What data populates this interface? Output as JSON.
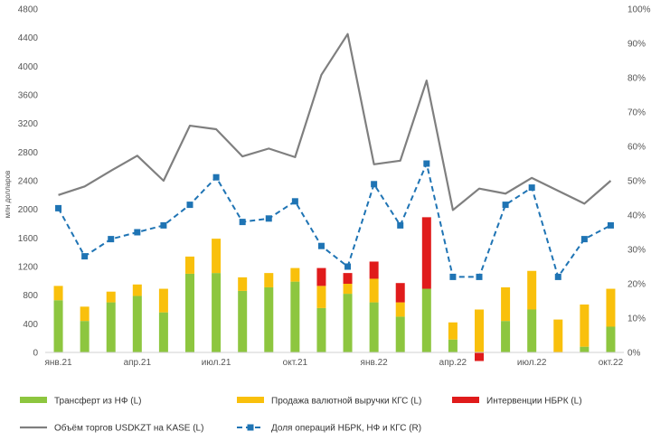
{
  "chart_data": {
    "type": "bar",
    "ylabel": "млн долларов",
    "ylim_left": [
      0,
      4800
    ],
    "ylim_right": [
      0,
      100
    ],
    "yticks_left": [
      "0",
      "400",
      "800",
      "1200",
      "1600",
      "2000",
      "2400",
      "2800",
      "3200",
      "3600",
      "4000",
      "4400",
      "4800"
    ],
    "yticks_right": [
      "0%",
      "10%",
      "20%",
      "30%",
      "40%",
      "50%",
      "60%",
      "70%",
      "80%",
      "90%",
      "100%"
    ],
    "x_tick_labels": [
      "янв.21",
      "апр.21",
      "июл.21",
      "окт.21",
      "янв.22",
      "апр.22",
      "июл.22",
      "окт.22"
    ],
    "grid": false,
    "legend_position": "bottom",
    "colors": {
      "transfer": "#8dc63f",
      "sales": "#f9c00c",
      "interventions": "#e01b1b",
      "volume": "#7f7f7f",
      "share": "#1f74b4"
    },
    "series": [
      {
        "name": "Трансферт из НФ (L)",
        "type": "bar",
        "values": [
          730,
          440,
          700,
          790,
          560,
          1100,
          1110,
          860,
          910,
          990,
          620,
          820,
          700,
          500,
          890,
          180,
          0,
          440,
          600,
          0,
          80,
          360
        ]
      },
      {
        "name": "Продажа валютной выручки КГС (L)",
        "type": "bar",
        "values": [
          200,
          200,
          150,
          160,
          330,
          240,
          480,
          190,
          200,
          190,
          310,
          140,
          330,
          200,
          0,
          240,
          600,
          470,
          540,
          460,
          590,
          530
        ]
      },
      {
        "name": "Интервенции НБРК (L)",
        "type": "bar",
        "values": [
          0,
          0,
          0,
          0,
          0,
          0,
          0,
          0,
          0,
          0,
          250,
          150,
          240,
          270,
          1000,
          0,
          -120,
          0,
          0,
          0,
          0,
          0
        ]
      },
      {
        "name": "Объём торгов USDKZT на KASE (L)",
        "type": "line",
        "values": [
          2200,
          2320,
          2540,
          2750,
          2400,
          3170,
          3120,
          2740,
          2850,
          2730,
          3880,
          4450,
          2630,
          2680,
          3800,
          1990,
          2290,
          2220,
          2440,
          2260,
          2080,
          2400
        ]
      },
      {
        "name": "Доля операций НБРК, НФ и КГС (R)",
        "type": "line",
        "values": [
          42,
          28,
          33,
          35,
          37,
          43,
          51,
          38,
          39,
          44,
          31,
          25,
          49,
          37,
          55,
          22,
          22,
          43,
          48,
          22,
          33,
          37
        ]
      }
    ]
  }
}
